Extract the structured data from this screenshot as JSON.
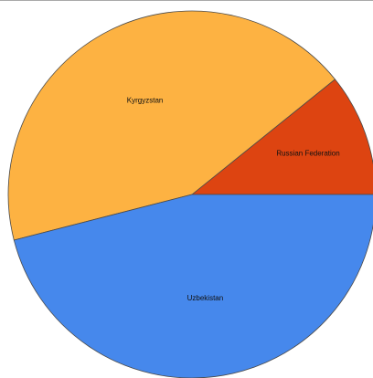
{
  "chart_data": {
    "type": "pie",
    "slices": [
      {
        "label": "Russian Federation",
        "value": 10.8,
        "color": "#dd4411"
      },
      {
        "label": "Kyrgyzstan",
        "value": 43.2,
        "color": "#fdb242"
      },
      {
        "label": "Uzbekistan",
        "value": 46.0,
        "color": "#4688ec"
      }
    ],
    "start_angle_deg": 0,
    "direction": "counterclockwise"
  }
}
